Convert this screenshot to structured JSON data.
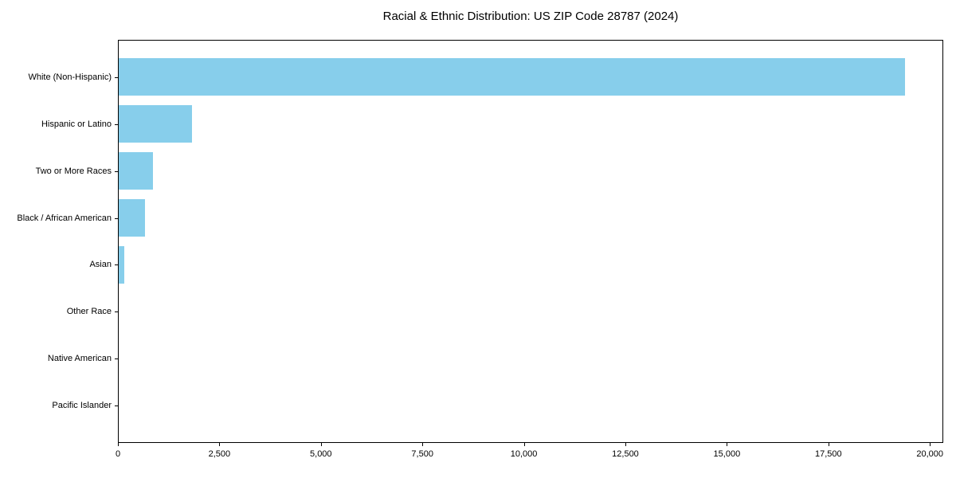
{
  "chart_data": {
    "type": "bar",
    "orientation": "horizontal",
    "title": "Racial & Ethnic Distribution: US ZIP Code 28787 (2024)",
    "categories": [
      "White (Non-Hispanic)",
      "Hispanic or Latino",
      "Two or More Races",
      "Black / African American",
      "Asian",
      "Other Race",
      "Native American",
      "Pacific Islander"
    ],
    "values": [
      19400,
      1800,
      840,
      650,
      140,
      0,
      0,
      0
    ],
    "xlabel": "",
    "ylabel": "",
    "xlim": [
      0,
      20330
    ],
    "x_ticks": [
      0,
      2500,
      5000,
      7500,
      10000,
      12500,
      15000,
      17500,
      20000
    ],
    "x_tick_labels": [
      "0",
      "2,500",
      "5,000",
      "7,500",
      "10,000",
      "12,500",
      "15,000",
      "17,500",
      "20,000"
    ],
    "grid": false,
    "legend": null,
    "bar_color": "#87CEEB",
    "spine_color": "#000000",
    "text_color": "#000000",
    "background_color": "#ffffff"
  }
}
